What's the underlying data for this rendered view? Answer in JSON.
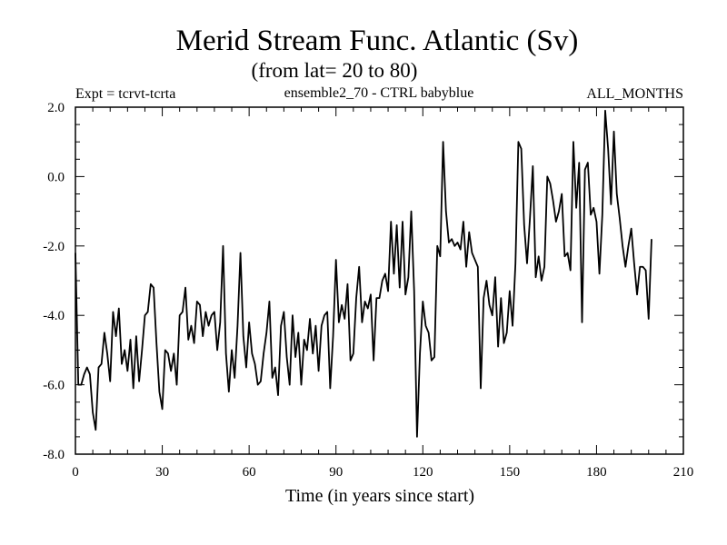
{
  "chart_data": {
    "type": "line",
    "title": "Merid Stream Func. Atlantic (Sv)",
    "subtitle": "(from lat= 20 to 80)",
    "annotations": {
      "left": "Expt = tcrvt-tcrta",
      "center": "ensemble2_70 - CTRL babyblue",
      "right": "ALL_MONTHS"
    },
    "xlabel": "Time (in years since start)",
    "ylabel": "",
    "xlim": [
      0,
      210
    ],
    "ylim": [
      -8,
      2
    ],
    "xticks": [
      0,
      30,
      60,
      90,
      120,
      150,
      180,
      210
    ],
    "xtick_labels": [
      "0",
      "30",
      "60",
      "90",
      "120",
      "150",
      "180",
      "210"
    ],
    "yticks": [
      -8,
      -6,
      -4,
      -2,
      0,
      2
    ],
    "ytick_labels": [
      "-8.0",
      "-6.0",
      "-4.0",
      "-2.0",
      "0.0",
      "2.0"
    ],
    "series": [
      {
        "name": "Merid Stream Func. Atlantic",
        "color": "#000000",
        "x": [
          0,
          1,
          2,
          3,
          4,
          5,
          6,
          7,
          8,
          9,
          10,
          11,
          12,
          13,
          14,
          15,
          16,
          17,
          18,
          19,
          20,
          21,
          22,
          23,
          24,
          25,
          26,
          27,
          28,
          29,
          30,
          31,
          32,
          33,
          34,
          35,
          36,
          37,
          38,
          39,
          40,
          41,
          42,
          43,
          44,
          45,
          46,
          47,
          48,
          49,
          50,
          51,
          52,
          53,
          54,
          55,
          56,
          57,
          58,
          59,
          60,
          61,
          62,
          63,
          64,
          65,
          66,
          67,
          68,
          69,
          70,
          71,
          72,
          73,
          74,
          75,
          76,
          77,
          78,
          79,
          80,
          81,
          82,
          83,
          84,
          85,
          86,
          87,
          88,
          89,
          90,
          91,
          92,
          93,
          94,
          95,
          96,
          97,
          98,
          99,
          100,
          101,
          102,
          103,
          104,
          105,
          106,
          107,
          108,
          109,
          110,
          111,
          112,
          113,
          114,
          115,
          116,
          117,
          118,
          119,
          120,
          121,
          122,
          123,
          124,
          125,
          126,
          127,
          128,
          129,
          130,
          131,
          132,
          133,
          134,
          135,
          136,
          137,
          138,
          139,
          140,
          141,
          142,
          143,
          144,
          145,
          146,
          147,
          148,
          149,
          150,
          151,
          152,
          153,
          154,
          155,
          156,
          157,
          158,
          159,
          160,
          161,
          162,
          163,
          164,
          165,
          166,
          167,
          168,
          169,
          170,
          171,
          172,
          173,
          174,
          175,
          176,
          177,
          178,
          179,
          180,
          181,
          182,
          183,
          184,
          185,
          186,
          187,
          188,
          189,
          190,
          191,
          192,
          193,
          194,
          195,
          196,
          197,
          198,
          199
        ],
        "values": [
          -2.2,
          -6.0,
          -6.0,
          -5.7,
          -5.5,
          -5.7,
          -6.8,
          -7.3,
          -5.5,
          -5.4,
          -4.5,
          -5.1,
          -5.9,
          -3.9,
          -4.6,
          -3.8,
          -5.4,
          -5.0,
          -5.6,
          -4.7,
          -6.1,
          -4.6,
          -5.9,
          -5.0,
          -4.0,
          -3.9,
          -3.1,
          -3.2,
          -4.8,
          -6.2,
          -6.7,
          -5.0,
          -5.1,
          -5.6,
          -5.1,
          -6.0,
          -4.0,
          -3.9,
          -3.2,
          -4.7,
          -4.3,
          -4.8,
          -3.6,
          -3.7,
          -4.6,
          -3.9,
          -4.3,
          -4.0,
          -3.9,
          -5.0,
          -4.2,
          -2.0,
          -5.1,
          -6.2,
          -5.0,
          -5.8,
          -4.3,
          -2.2,
          -4.6,
          -5.5,
          -4.2,
          -5.1,
          -5.4,
          -6.0,
          -5.9,
          -5.1,
          -4.5,
          -3.6,
          -5.8,
          -5.5,
          -6.3,
          -4.3,
          -3.9,
          -5.2,
          -6.0,
          -4.0,
          -5.2,
          -4.5,
          -6.0,
          -4.7,
          -5.0,
          -4.1,
          -5.1,
          -4.3,
          -5.6,
          -4.3,
          -4.0,
          -3.9,
          -6.1,
          -4.6,
          -2.4,
          -4.2,
          -3.7,
          -4.1,
          -3.1,
          -5.3,
          -5.1,
          -3.5,
          -2.6,
          -4.2,
          -3.6,
          -3.8,
          -3.4,
          -5.3,
          -3.5,
          -3.5,
          -3.0,
          -2.8,
          -3.3,
          -1.3,
          -2.8,
          -1.4,
          -3.2,
          -1.3,
          -3.4,
          -2.9,
          -1.0,
          -3.3,
          -7.5,
          -5.1,
          -3.6,
          -4.3,
          -4.5,
          -5.3,
          -5.2,
          -2.0,
          -2.3,
          1.0,
          -1.0,
          -1.9,
          -1.8,
          -2.0,
          -1.9,
          -2.1,
          -1.3,
          -2.6,
          -1.6,
          -2.2,
          -2.4,
          -2.6,
          -6.1,
          -3.5,
          -3.0,
          -3.7,
          -4.0,
          -2.9,
          -4.9,
          -3.5,
          -4.8,
          -4.5,
          -3.3,
          -4.3,
          -2.5,
          1.0,
          0.8,
          -1.4,
          -2.5,
          -1.2,
          0.3,
          -2.9,
          -2.3,
          -3.0,
          -2.6,
          0.0,
          -0.2,
          -0.7,
          -1.3,
          -1.0,
          -0.5,
          -2.3,
          -2.2,
          -2.7,
          1.0,
          -0.9,
          0.4,
          -4.2,
          0.2,
          0.4,
          -1.1,
          -0.9,
          -1.3,
          -2.8,
          -1.1,
          1.9,
          0.8,
          -0.8,
          1.3,
          -0.5,
          -1.2,
          -2.0,
          -2.6,
          -2.0,
          -1.5,
          -2.5,
          -3.4,
          -2.6,
          -2.6,
          -2.7,
          -4.1,
          -1.8
        ]
      }
    ]
  }
}
